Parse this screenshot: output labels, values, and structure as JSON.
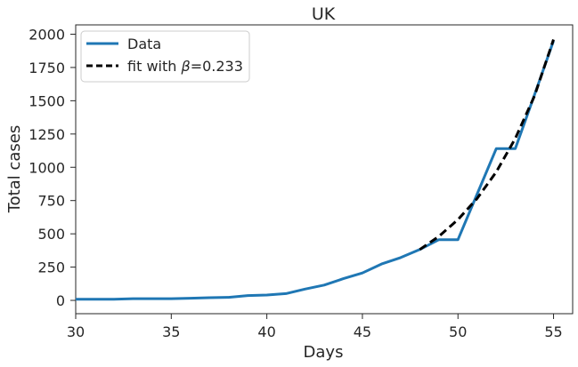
{
  "chart_data": {
    "type": "line",
    "title": "UK",
    "xlabel": "Days",
    "ylabel": "Total cases",
    "xlim": [
      30,
      56
    ],
    "ylim": [
      -100,
      2070
    ],
    "xticks": [
      30,
      35,
      40,
      45,
      50,
      55
    ],
    "yticks": [
      0,
      250,
      500,
      750,
      1000,
      1250,
      1500,
      1750,
      2000
    ],
    "grid": false,
    "legend_position": "top-left",
    "colors": {
      "data": "#1f77b4",
      "fit": "#000000"
    },
    "series": [
      {
        "name": "Data",
        "style": "solid",
        "x": [
          30,
          31,
          32,
          33,
          34,
          35,
          36,
          37,
          38,
          39,
          40,
          41,
          42,
          43,
          44,
          45,
          46,
          47,
          48,
          49,
          50,
          51,
          52,
          53,
          54,
          55
        ],
        "y": [
          8,
          8,
          8,
          13,
          13,
          13,
          16,
          20,
          23,
          36,
          40,
          51,
          85,
          115,
          163,
          206,
          273,
          321,
          382,
          456,
          456,
          798,
          1140,
          1140,
          1543,
          1950
        ]
      },
      {
        "name_prefix": "fit with ",
        "name_symbol": "β",
        "name_suffix": "=0.233",
        "style": "dashed",
        "x": [
          48,
          49,
          50,
          51,
          52,
          53,
          54,
          55
        ],
        "y": [
          382,
          481,
          607,
          765,
          965,
          1217,
          1535,
          1960
        ]
      }
    ]
  }
}
